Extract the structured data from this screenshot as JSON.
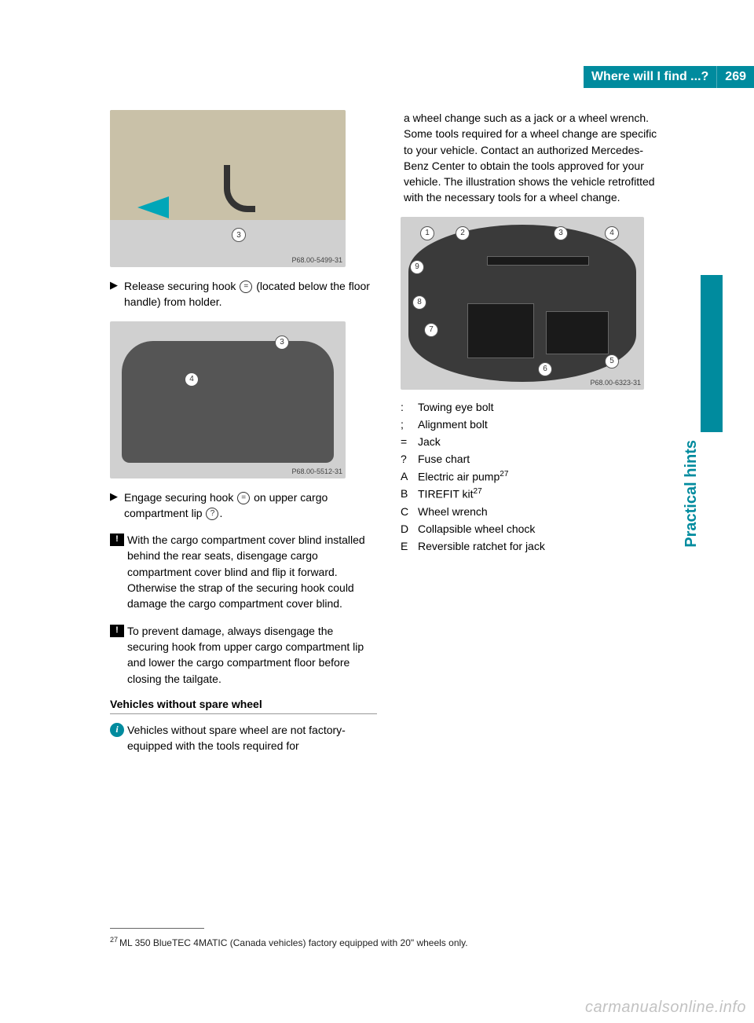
{
  "header": {
    "title": "Where will I find ...?",
    "page_number": "269"
  },
  "side_label": "Practical hints",
  "colors": {
    "accent": "#008b9e",
    "text": "#000000",
    "figure_bg": "#d0d0d0"
  },
  "figures": {
    "fig1": {
      "caption": "P68.00-5499-31",
      "callouts": [
        "3"
      ]
    },
    "fig2": {
      "caption": "P68.00-5512-31",
      "callouts": [
        "3",
        "4"
      ]
    },
    "fig3": {
      "caption": "P68.00-6323-31",
      "callouts": [
        "1",
        "2",
        "3",
        "4",
        "5",
        "6",
        "7",
        "8",
        "9"
      ]
    }
  },
  "left_column": {
    "step1_pre": "Release securing hook ",
    "step1_num": "=",
    "step1_post": " (located below the floor handle) from holder.",
    "step2_pre": "Engage securing hook ",
    "step2_num": "=",
    "step2_mid": " on upper cargo compartment lip ",
    "step2_num2": "?",
    "step2_post": ".",
    "note1": "With the cargo compartment cover blind installed behind the rear seats, disengage cargo compartment cover blind and flip it forward. Otherwise the strap of the securing hook could damage the cargo compartment cover blind.",
    "note2": "To prevent damage, always disengage the securing hook from upper cargo compartment lip and lower the cargo compartment floor before closing the tailgate.",
    "subheading": "Vehicles without spare wheel",
    "info_pre": "Vehicles without spare wheel are not factory-equipped with the tools required for"
  },
  "right_column": {
    "continuation": "a wheel change such as a jack or a wheel wrench. Some tools required for a wheel change are specific to your vehicle. Contact an authorized Mercedes-Benz Center to obtain the tools approved for your vehicle. The illustration shows the vehicle retrofitted with the necessary tools for a wheel change.",
    "legend": [
      {
        "key": ":",
        "text": "Towing eye bolt",
        "sup": ""
      },
      {
        "key": ";",
        "text": "Alignment bolt",
        "sup": ""
      },
      {
        "key": "=",
        "text": "Jack",
        "sup": ""
      },
      {
        "key": "?",
        "text": "Fuse chart",
        "sup": ""
      },
      {
        "key": "A",
        "text": "Electric air pump",
        "sup": "27"
      },
      {
        "key": "B",
        "text": "TIREFIT kit",
        "sup": "27"
      },
      {
        "key": "C",
        "text": "Wheel wrench",
        "sup": ""
      },
      {
        "key": "D",
        "text": "Collapsible wheel chock",
        "sup": ""
      },
      {
        "key": "E",
        "text": "Reversible ratchet for jack",
        "sup": ""
      }
    ]
  },
  "footnote": {
    "num": "27",
    "text": "ML 350 BlueTEC 4MATIC (Canada vehicles) factory equipped with 20\" wheels only."
  },
  "watermark": "carmanualsonline.info"
}
